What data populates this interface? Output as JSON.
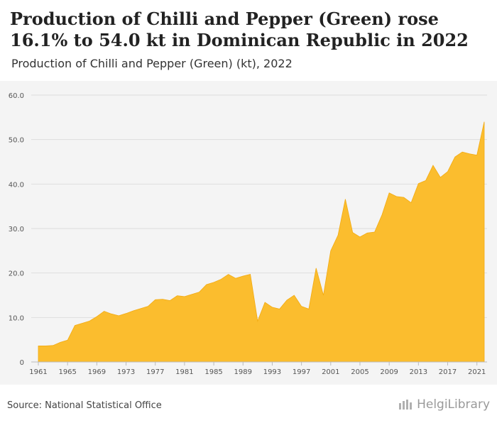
{
  "header": {
    "title": "Production of Chilli and Pepper (Green) rose 16.1% to 54.0 kt in Dominican Republic in 2022",
    "subtitle": "Production of Chilli and Pepper (Green) (kt), 2022"
  },
  "footer": {
    "source": "Source: National Statistical Office",
    "brand": "HelgiLibrary"
  },
  "colors": {
    "area_fill": "#fbbd2e",
    "area_stroke": "#f2aa11",
    "grid": "#dddddd",
    "plot_background": "#f4f4f4"
  },
  "chart_data": {
    "type": "area",
    "title": "Production of Chilli and Pepper (Green) (kt), 2022",
    "xlabel": "",
    "ylabel": "",
    "ylim": [
      0,
      60
    ],
    "yticks": [
      0,
      10,
      20,
      30,
      40,
      50,
      60
    ],
    "ytick_labels": [
      "0",
      "10.0",
      "20.0",
      "30.0",
      "40.0",
      "50.0",
      "60.0"
    ],
    "xticks": [
      1961,
      1965,
      1969,
      1973,
      1977,
      1981,
      1985,
      1989,
      1993,
      1997,
      2001,
      2005,
      2009,
      2013,
      2017,
      2021
    ],
    "grid": true,
    "x": [
      1961,
      1962,
      1963,
      1964,
      1965,
      1966,
      1967,
      1968,
      1969,
      1970,
      1971,
      1972,
      1973,
      1974,
      1975,
      1976,
      1977,
      1978,
      1979,
      1980,
      1981,
      1982,
      1983,
      1984,
      1985,
      1986,
      1987,
      1988,
      1989,
      1990,
      1991,
      1992,
      1993,
      1994,
      1995,
      1996,
      1997,
      1998,
      1999,
      2000,
      2001,
      2002,
      2003,
      2004,
      2005,
      2006,
      2007,
      2008,
      2009,
      2010,
      2011,
      2012,
      2013,
      2014,
      2015,
      2016,
      2017,
      2018,
      2019,
      2020,
      2021,
      2022
    ],
    "values": [
      3.6,
      3.6,
      3.7,
      4.4,
      4.9,
      8.2,
      8.7,
      9.2,
      10.2,
      11.4,
      10.8,
      10.4,
      10.9,
      11.5,
      12.0,
      12.5,
      14.0,
      14.1,
      13.8,
      14.9,
      14.7,
      15.2,
      15.7,
      17.4,
      17.9,
      18.6,
      19.7,
      18.8,
      19.3,
      19.7,
      9.2,
      13.4,
      12.3,
      11.9,
      13.9,
      15.0,
      12.5,
      11.9,
      21.1,
      15.0,
      25.0,
      28.5,
      36.6,
      29.1,
      28.1,
      29.0,
      29.2,
      33.0,
      38.0,
      37.2,
      37.0,
      35.8,
      40.1,
      40.8,
      44.2,
      41.5,
      42.8,
      46.1,
      47.2,
      46.8,
      46.5,
      54.0
    ]
  }
}
